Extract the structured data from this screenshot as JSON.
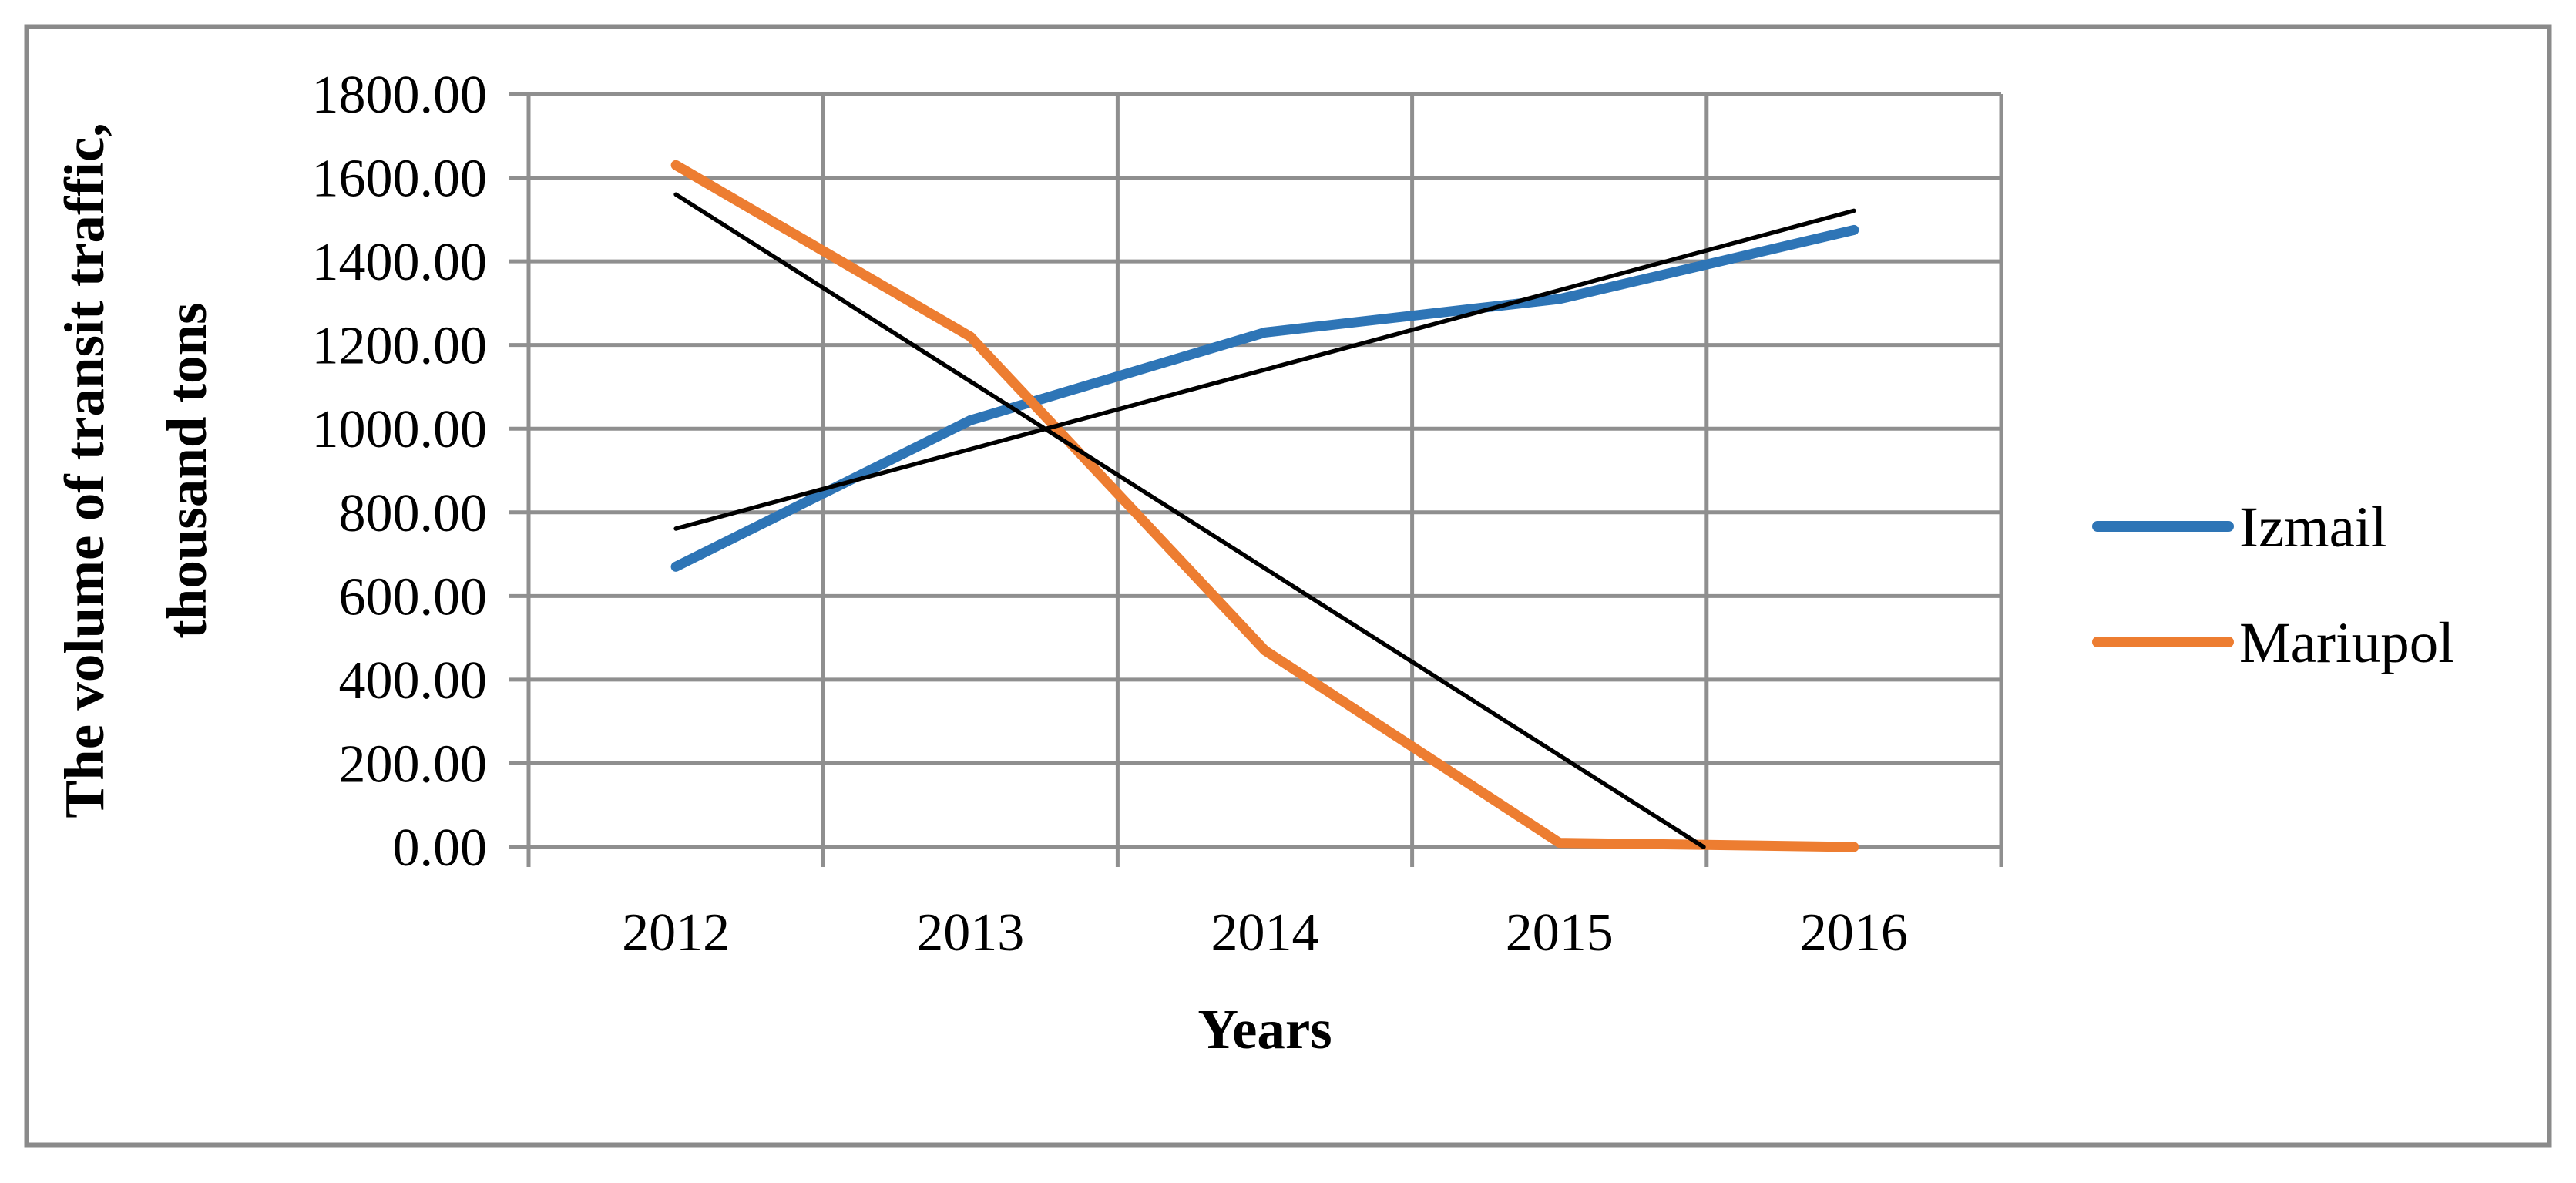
{
  "figure": {
    "background": "#ffffff",
    "border_color": "#8a8a8a",
    "grid_color": "#8f8f8f",
    "text_color": "#000000"
  },
  "chart_data": {
    "type": "line",
    "title": "",
    "categories": [
      "2012",
      "2013",
      "2014",
      "2015",
      "2016"
    ],
    "series": [
      {
        "name": "Izmail",
        "color": "#2E75B6",
        "values": [
          670,
          1020,
          1230,
          1310,
          1475
        ]
      },
      {
        "name": "Mariupol",
        "color": "#ED7D31",
        "values": [
          1630,
          1220,
          470,
          10,
          0
        ]
      }
    ],
    "trendlines": [
      {
        "for": "Izmail",
        "type": "linear",
        "color": "#000000",
        "value_at_first": 761,
        "value_at_last": 1521
      },
      {
        "for": "Mariupol",
        "type": "linear",
        "color": "#000000",
        "value_at_first": 1560,
        "value_at_last": -228
      }
    ],
    "xlabel": "Years",
    "ylabel_lines": [
      "The volume of transit traffic,",
      "thousand tons"
    ],
    "ylim": [
      0,
      1800
    ],
    "ytick_step": 200,
    "ytick_labels": [
      "0.00",
      "200.00",
      "400.00",
      "600.00",
      "800.00",
      "1000.00",
      "1200.00",
      "1400.00",
      "1600.00",
      "1800.00"
    ],
    "xtick_labels": [
      "2012",
      "2013",
      "2014",
      "2015",
      "2016"
    ],
    "grid": true,
    "legend_position": "right",
    "legend": [
      {
        "label": "Izmail",
        "color": "#2E75B6"
      },
      {
        "label": "Mariupol",
        "color": "#ED7D31"
      }
    ]
  }
}
